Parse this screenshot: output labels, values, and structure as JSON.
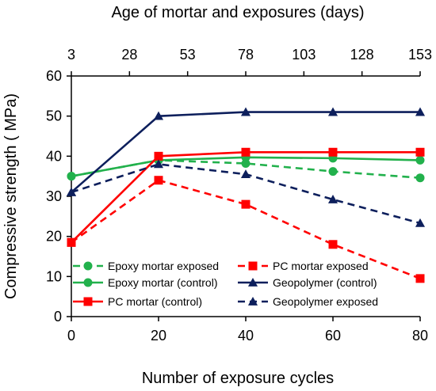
{
  "chart_data": {
    "type": "line",
    "xlabel": "Number of exposure cycles",
    "ylabel": "Compressive strength ( MPa)",
    "x2label": "Age of mortar and exposures (days)",
    "xlim": [
      0,
      80
    ],
    "ylim": [
      0,
      60
    ],
    "xticks": [
      0,
      20,
      40,
      60,
      80
    ],
    "yticks": [
      0,
      10,
      20,
      30,
      40,
      50,
      60
    ],
    "x2ticks": [
      "3",
      "28",
      "53",
      "78",
      "103",
      "128",
      "153"
    ],
    "grid": false,
    "legend_position": "bottom-inside",
    "series": [
      {
        "name": "Epoxy mortar exposed",
        "x": [
          0,
          20,
          40,
          60,
          80
        ],
        "values": [
          35,
          39,
          38.2,
          36.2,
          34.6
        ],
        "color": "#22b14c",
        "dash": true,
        "marker": "circle"
      },
      {
        "name": "PC mortar exposed",
        "x": [
          0,
          20,
          40,
          60,
          80
        ],
        "values": [
          18.5,
          34,
          28,
          18,
          9.5
        ],
        "color": "#ff0000",
        "dash": true,
        "marker": "square"
      },
      {
        "name": "Epoxy mortar (control)",
        "x": [
          0,
          20,
          40,
          60,
          80
        ],
        "values": [
          35,
          39,
          39.7,
          39.5,
          39
        ],
        "color": "#22b14c",
        "dash": false,
        "marker": "circle"
      },
      {
        "name": "Geopolymer (control)",
        "x": [
          0,
          20,
          40,
          60,
          80
        ],
        "values": [
          31,
          50,
          51,
          51,
          51
        ],
        "color": "#0d1f5c",
        "dash": false,
        "marker": "triangle"
      },
      {
        "name": "PC mortar (control)",
        "x": [
          0,
          20,
          40,
          60,
          80
        ],
        "values": [
          18.5,
          40,
          41,
          41,
          41
        ],
        "color": "#ff0000",
        "dash": false,
        "marker": "square"
      },
      {
        "name": "Geopolymer exposed",
        "x": [
          0,
          20,
          40,
          60,
          80
        ],
        "values": [
          31,
          38,
          35.5,
          29.2,
          23.3
        ],
        "color": "#0d1f5c",
        "dash": true,
        "marker": "triangle"
      }
    ]
  }
}
